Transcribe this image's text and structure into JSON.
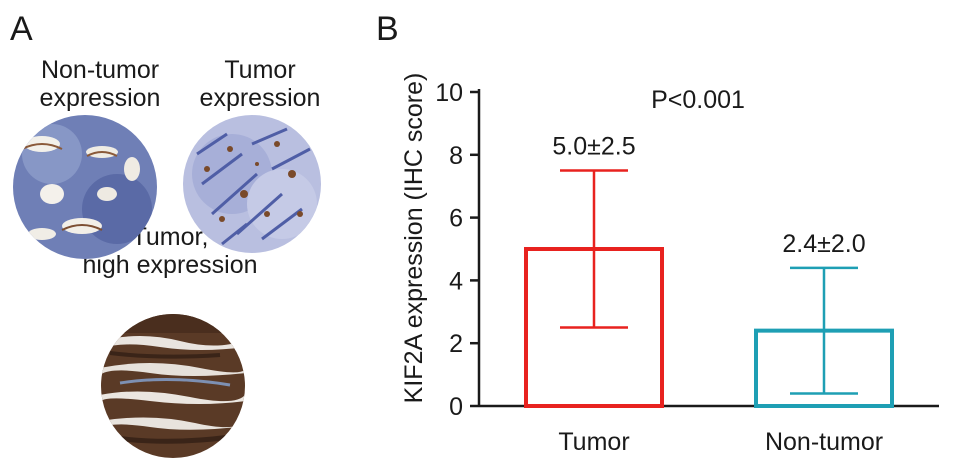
{
  "panel_a": {
    "letter": "A",
    "samples": [
      {
        "caption_lines": [
          "Non-tumor",
          "expression"
        ],
        "stain": "low"
      },
      {
        "caption_lines": [
          "Tumor",
          "expression"
        ],
        "stain": "medium"
      },
      {
        "caption_lines": [
          "Tumor,",
          "high expression"
        ],
        "stain": "high"
      }
    ]
  },
  "panel_b": {
    "letter": "B"
  },
  "chart_data": {
    "type": "bar",
    "title": "",
    "ylabel": "KIF2A expression (IHC score)",
    "xlabel": "",
    "categories": [
      "Tumor",
      "Non-tumor"
    ],
    "values": [
      5.0,
      2.4
    ],
    "errors": [
      2.5,
      2.0
    ],
    "value_labels": [
      "5.0±2.5",
      "2.4±2.0"
    ],
    "colors": [
      "#e8221f",
      "#1e9fb4"
    ],
    "ylim": [
      0,
      10
    ],
    "yticks": [
      0,
      2,
      4,
      6,
      8,
      10
    ],
    "annotation": "P<0.001",
    "grid": false,
    "legend": "none"
  }
}
